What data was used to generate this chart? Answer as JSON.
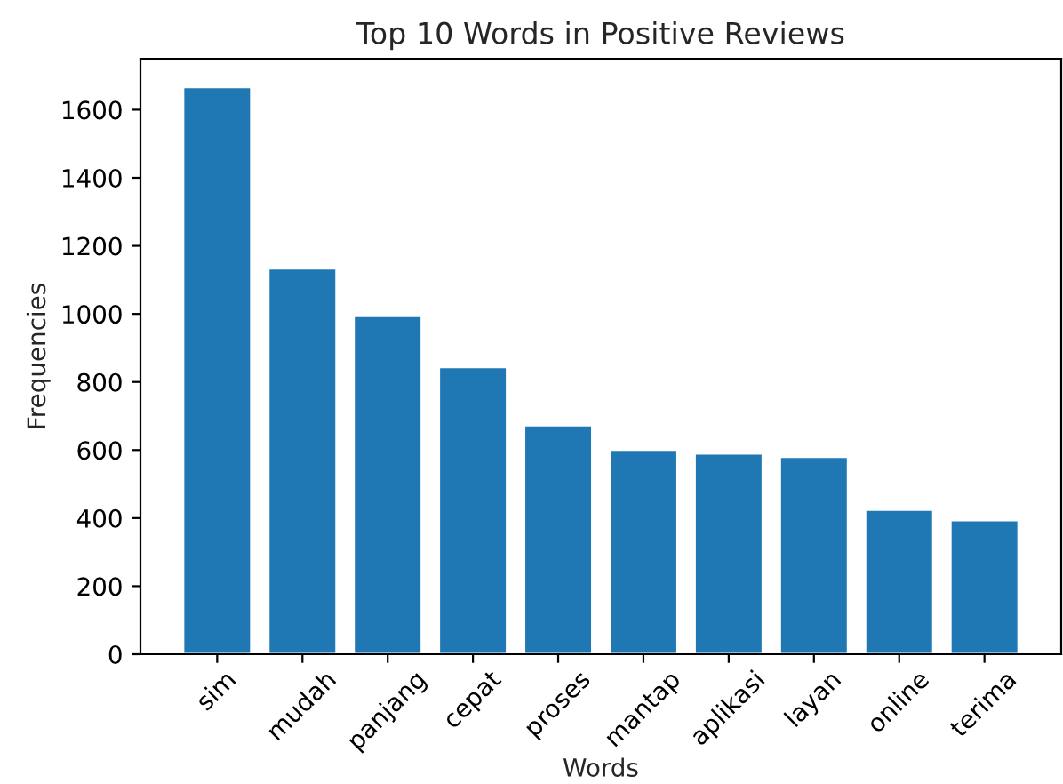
{
  "chart_data": {
    "type": "bar",
    "title": "Top 10 Words in Positive Reviews",
    "xlabel": "Words",
    "ylabel": "Frequencies",
    "categories": [
      "sim",
      "mudah",
      "panjang",
      "cepat",
      "proses",
      "mantap",
      "aplikasi",
      "layan",
      "online",
      "terima"
    ],
    "values": [
      1667,
      1134,
      994,
      844,
      673,
      601,
      590,
      580,
      425,
      394
    ],
    "color": "#1f77b4",
    "ylim": [
      0,
      1750
    ],
    "yticks": [
      0,
      200,
      400,
      600,
      800,
      1000,
      1200,
      1400,
      1600
    ],
    "grid": false,
    "legend": false
  }
}
